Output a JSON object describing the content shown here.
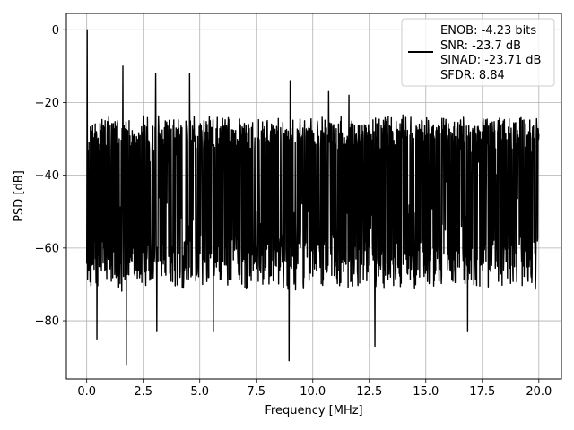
{
  "chart_data": {
    "type": "line",
    "title": "",
    "xlabel": "Frequency [MHz]",
    "ylabel": "PSD [dB]",
    "xlim": [
      -0.9,
      21.0
    ],
    "ylim": [
      -96.0,
      4.5
    ],
    "x_ticks": [
      0.0,
      2.5,
      5.0,
      7.5,
      10.0,
      12.5,
      15.0,
      17.5,
      20.0
    ],
    "x_tick_labels": [
      "0.0",
      "2.5",
      "5.0",
      "7.5",
      "10.0",
      "12.5",
      "15.0",
      "17.5",
      "20.0"
    ],
    "y_ticks": [
      0,
      -20,
      -40,
      -60,
      -80
    ],
    "y_tick_labels": [
      "0",
      "−20",
      "−40",
      "−60",
      "−80"
    ],
    "grid": true,
    "legend": {
      "position": "top-right",
      "entries": [
        "ENOB: -4.23 bits",
        "SNR: -23.7 dB",
        "SINAD: -23.71 dB",
        "SFDR: 8.84"
      ]
    },
    "series": [
      {
        "color": "#000000",
        "noise_band": {
          "x_range": [
            0.0,
            20.0
          ],
          "upper_db": [
            -30,
            -23
          ],
          "lower_db": [
            -72,
            -60
          ]
        },
        "peaks": [
          {
            "x": 0.02,
            "y": 0
          },
          {
            "x": 1.6,
            "y": -10
          },
          {
            "x": 3.05,
            "y": -12
          },
          {
            "x": 4.55,
            "y": -12
          },
          {
            "x": 9.0,
            "y": -14
          },
          {
            "x": 10.7,
            "y": -17
          },
          {
            "x": 11.6,
            "y": -18
          }
        ],
        "dips": [
          {
            "x": 0.45,
            "y": -85
          },
          {
            "x": 1.75,
            "y": -92
          },
          {
            "x": 3.1,
            "y": -83
          },
          {
            "x": 5.6,
            "y": -83
          },
          {
            "x": 8.95,
            "y": -91
          },
          {
            "x": 12.75,
            "y": -87
          },
          {
            "x": 16.85,
            "y": -83
          }
        ]
      }
    ]
  }
}
